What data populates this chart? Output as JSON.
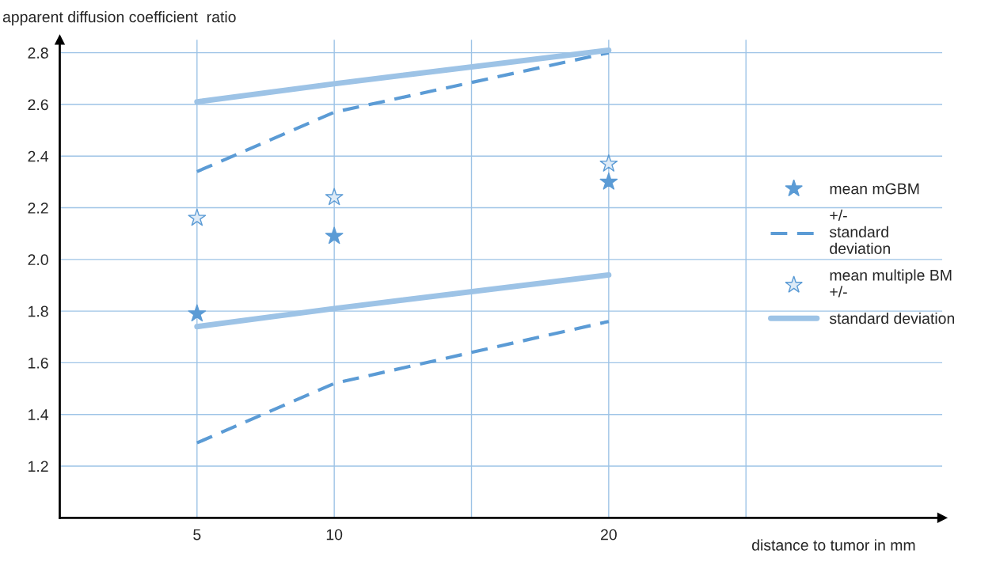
{
  "chart_data": {
    "type": "line",
    "ylabel": "apparent diffusion coefficient  ratio",
    "xlabel": "distance to tumor in mm",
    "categories": [
      "5",
      "10",
      null,
      "20",
      null
    ],
    "series": [
      {
        "name": "mean mGBM",
        "type": "scatter",
        "marker": "star",
        "color": "#5b9bd5",
        "values": [
          1.79,
          2.09,
          null,
          2.3,
          null
        ]
      },
      {
        "name": "+/-\nstandard\ndeviation",
        "line_style": "dashed",
        "marker": "none",
        "color": "#5b9bd5",
        "values": [
          2.34,
          2.57,
          null,
          2.8,
          null
        ]
      },
      {
        "line_style": "dashed",
        "marker": "none",
        "color": "#5b9bd5",
        "values": [
          1.29,
          1.52,
          null,
          1.76,
          null
        ]
      },
      {
        "name": "mean multiple BM\n+/-",
        "type": "scatter",
        "marker": "star",
        "color": "#deebf7",
        "values": [
          2.16,
          2.24,
          null,
          2.37,
          null
        ]
      },
      {
        "name": "standard deviation",
        "line_style": "solid",
        "marker": "none",
        "color": "#9dc3e6",
        "values": [
          2.61,
          2.68,
          null,
          2.81,
          null
        ]
      },
      {
        "line_style": "solid",
        "marker": "none",
        "color": "#9dc3e6",
        "values": [
          1.74,
          1.81,
          null,
          1.94,
          null
        ]
      }
    ],
    "ylim": [
      1.0,
      2.85
    ],
    "yticks": [
      1.2,
      1.4,
      1.6,
      1.8,
      {
        "value": 2,
        "label": "2.0"
      },
      2.2,
      2.4,
      2.6,
      2.8
    ],
    "grid": true,
    "legend": "right"
  }
}
